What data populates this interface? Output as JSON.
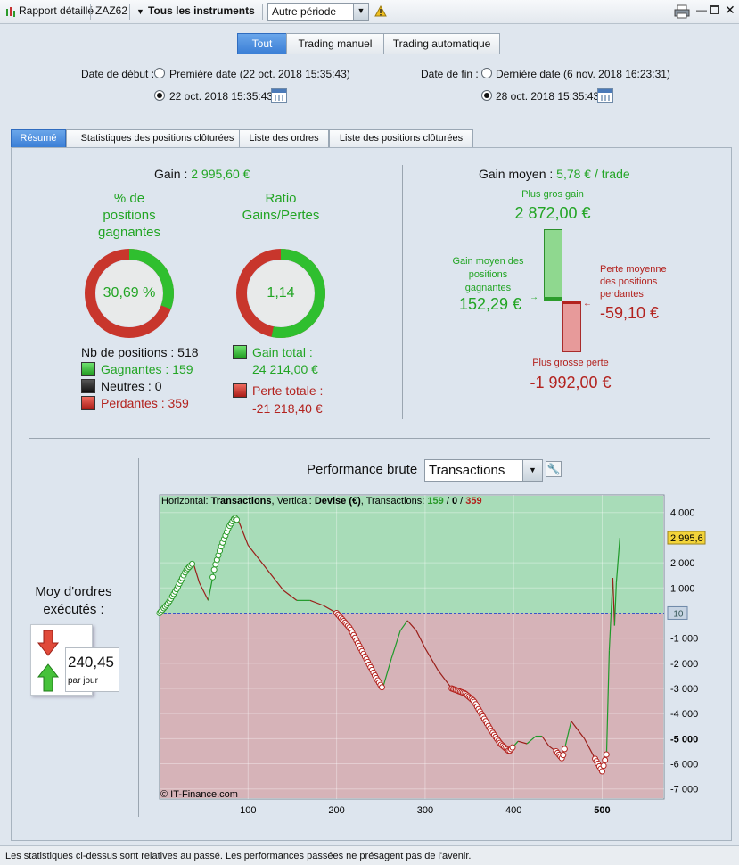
{
  "toolbar": {
    "report": "Rapport détaillé",
    "account": "ZAZ62",
    "instruments": "Tous les instruments",
    "period": "Autre période"
  },
  "mode_tabs": [
    "Tout",
    "Trading manuel",
    "Trading automatique"
  ],
  "dates": {
    "start_label": "Date de début :",
    "start_first": "Première date (22 oct. 2018 15:35:43)",
    "start_custom": "22 oct. 2018 15:35:43",
    "end_label": "Date de fin :",
    "end_last": "Dernière date (6 nov. 2018 16:23:31)",
    "end_custom": "28 oct. 2018 15:35:43"
  },
  "tabs": [
    "Résumé",
    "Statistiques des positions clôturées",
    "Liste des ordres",
    "Liste des positions clôturées"
  ],
  "summary": {
    "gain_label": "Gain :",
    "gain_value": "2 995,60 €",
    "pct_title_1": "% de",
    "pct_title_2": "positions",
    "pct_title_3": "gagnantes",
    "pct_value": "30,69 %",
    "pct_fraction": 0.3069,
    "ratio_title_1": "Ratio",
    "ratio_title_2": "Gains/Pertes",
    "ratio_value": "1,14",
    "ratio_green_fraction": 0.533,
    "nb_positions": "Nb de positions : 518",
    "gagnantes": "Gagnantes : 159",
    "neutres": "Neutres : 0",
    "perdantes": "Perdantes : 359",
    "gain_total_label": "Gain total :",
    "gain_total_value": "24 214,00 €",
    "perte_totale_label": "Perte totale :",
    "perte_totale_value": "-21 218,40 €"
  },
  "gain_moyen": {
    "label": "Gain moyen :",
    "value": "5,78 € / trade",
    "plus_gros_gain_label": "Plus gros gain",
    "plus_gros_gain_value": "2 872,00 €",
    "gain_moyen_pos_1": "Gain moyen des",
    "gain_moyen_pos_2": "positions",
    "gain_moyen_pos_3": "gagnantes",
    "gain_moyen_pos_value": "152,29 €",
    "perte_moyenne_1": "Perte moyenne",
    "perte_moyenne_2": "des positions",
    "perte_moyenne_3": "perdantes",
    "perte_moyenne_value": "-59,10 €",
    "plus_grosse_perte_label": "Plus grosse perte",
    "plus_grosse_perte_value": "-1 992,00 €"
  },
  "orders": {
    "title_1": "Moy d'ordres",
    "title_2": "exécutés :",
    "value": "240,45",
    "unit": "par jour"
  },
  "perf": {
    "title": "Performance brute",
    "dropdown": "Transactions"
  },
  "chart_header": {
    "h_label": "Horizontal:",
    "h_value": "Transactions",
    "v_label": ", Vertical:",
    "v_value": "Devise (€)",
    "t_label": ", Transactions:",
    "t_win": "159",
    "slash1": " / ",
    "t_neutral": "0",
    "slash2": " / ",
    "t_loss": "359"
  },
  "copyright": "© IT-Finance.com",
  "status": "Les statistiques ci-dessus sont relatives au passé. Les performances passées ne présagent pas de l'avenir.",
  "chart_data": {
    "type": "line",
    "xlim": [
      0,
      570
    ],
    "ylim": [
      -7400,
      4700
    ],
    "x_ticks": [
      100,
      200,
      300,
      400,
      500
    ],
    "y_ticks": [
      4000,
      2000,
      1000,
      0,
      -1000,
      -2000,
      -3000,
      -4000,
      -5000,
      -6000,
      -7000
    ],
    "y_tick_labels": [
      "4 000",
      "2 000",
      "1 000",
      "0",
      "-1 000",
      "-2 000",
      "-3 000",
      "-4 000",
      "-5 000",
      "-6 000",
      "-7 000"
    ],
    "last_value_label": "2 995,6",
    "zero_marker_label": "-10",
    "series": [
      {
        "points": [
          [
            0,
            0
          ],
          [
            10,
            400
          ],
          [
            20,
            1000
          ],
          [
            30,
            1700
          ],
          [
            38,
            2000
          ],
          [
            45,
            1200
          ],
          [
            55,
            500
          ],
          [
            62,
            1800
          ],
          [
            70,
            2700
          ],
          [
            78,
            3400
          ],
          [
            85,
            3800
          ],
          [
            90,
            3600
          ],
          [
            100,
            2700
          ],
          [
            120,
            1800
          ],
          [
            140,
            900
          ],
          [
            155,
            500
          ],
          [
            170,
            500
          ],
          [
            185,
            300
          ],
          [
            200,
            0
          ],
          [
            215,
            -600
          ],
          [
            230,
            -1600
          ],
          [
            245,
            -2600
          ],
          [
            252,
            -3000
          ],
          [
            262,
            -1800
          ],
          [
            272,
            -700
          ],
          [
            280,
            -300
          ],
          [
            290,
            -700
          ],
          [
            300,
            -1400
          ],
          [
            315,
            -2300
          ],
          [
            330,
            -3000
          ],
          [
            345,
            -3200
          ],
          [
            355,
            -3500
          ],
          [
            365,
            -4100
          ],
          [
            375,
            -4700
          ],
          [
            385,
            -5200
          ],
          [
            395,
            -5500
          ],
          [
            405,
            -5100
          ],
          [
            415,
            -5200
          ],
          [
            425,
            -4900
          ],
          [
            432,
            -4900
          ],
          [
            440,
            -5300
          ],
          [
            448,
            -5500
          ],
          [
            455,
            -5800
          ],
          [
            465,
            -4300
          ],
          [
            480,
            -5000
          ],
          [
            492,
            -5800
          ],
          [
            500,
            -6300
          ],
          [
            505,
            -5600
          ],
          [
            508,
            -1500
          ],
          [
            512,
            1400
          ],
          [
            514,
            -500
          ],
          [
            516,
            1200
          ],
          [
            520,
            2996
          ]
        ]
      }
    ]
  }
}
